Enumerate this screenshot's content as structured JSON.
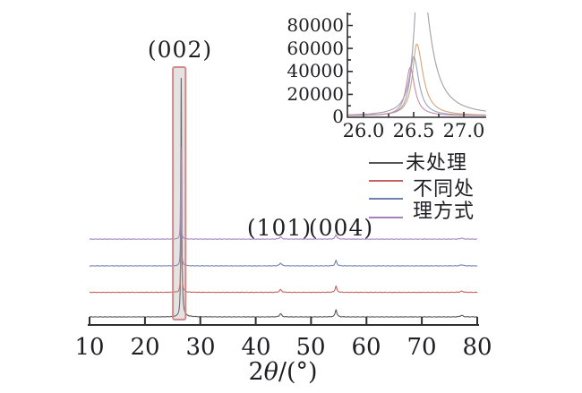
{
  "chart_data": {
    "type": "line",
    "title": "",
    "main": {
      "xlabel_parts": [
        "2",
        "θ",
        "/(°)"
      ],
      "x_tick_labels": [
        "10",
        "20",
        "30",
        "40",
        "50",
        "60",
        "70",
        "80"
      ],
      "x_range": [
        10,
        80
      ],
      "grid": false,
      "peak_annotations": [
        {
          "label": "(002)",
          "two_theta": 26.5
        },
        {
          "label": "(101)",
          "two_theta": 44.5
        },
        {
          "label": "(004)",
          "two_theta": 54.5
        }
      ],
      "highlight_band": {
        "x_min": 25.05,
        "x_max": 27.35,
        "fill": "rgba(168,160,160,0.30)",
        "stroke": "#d18a8b"
      },
      "series": [
        {
          "id": "s1-untreated",
          "color": "#55555c",
          "offset": 0,
          "peaks": [
            {
              "c": 26.55,
              "a": 110000,
              "wl": 0.07,
              "wr": 0.1
            },
            {
              "c": 44.5,
              "a": 1500,
              "w": 0.22
            },
            {
              "c": 54.5,
              "a": 3300,
              "w": 0.18
            },
            {
              "c": 77.2,
              "a": 700,
              "w": 0.3
            }
          ]
        },
        {
          "id": "s2-treated-a",
          "color": "#c4625e",
          "offset": 11300,
          "peaks": [
            {
              "c": 26.53,
              "a": 63000,
              "wl": 0.055,
              "wr": 0.075
            },
            {
              "c": 44.5,
              "a": 1300,
              "w": 0.22
            },
            {
              "c": 54.5,
              "a": 2900,
              "w": 0.18
            },
            {
              "c": 77.2,
              "a": 550,
              "w": 0.3
            }
          ]
        },
        {
          "id": "s3-treated-b",
          "color": "#6f80b2",
          "offset": 23500,
          "peaks": [
            {
              "c": 26.5,
              "a": 52000,
              "wl": 0.055,
              "wr": 0.065
            },
            {
              "c": 44.5,
              "a": 1300,
              "w": 0.22
            },
            {
              "c": 54.5,
              "a": 2500,
              "w": 0.18
            },
            {
              "c": 77.2,
              "a": 500,
              "w": 0.3
            }
          ]
        },
        {
          "id": "s4-treated-c",
          "color": "#a582bc",
          "offset": 35800,
          "peaks": [
            {
              "c": 26.47,
              "a": 42500,
              "wl": 0.055,
              "wr": 0.06
            },
            {
              "c": 44.5,
              "a": 1100,
              "w": 0.22
            },
            {
              "c": 54.5,
              "a": 2100,
              "w": 0.18
            },
            {
              "c": 77.2,
              "a": 450,
              "w": 0.3
            }
          ]
        }
      ]
    },
    "inset": {
      "x_tick_labels": [
        "26.0",
        "26.5",
        "27.0"
      ],
      "x_tick_values": [
        26.0,
        26.5,
        27.0
      ],
      "y_tick_labels": [
        "80000",
        "60000",
        "40000",
        "20000",
        "0"
      ],
      "y_tick_values": [
        80000,
        60000,
        40000,
        20000,
        0
      ],
      "x_range": [
        25.84,
        27.22
      ],
      "y_range": [
        0,
        91500
      ],
      "grid": false,
      "series": [
        {
          "id": "s1-untreated",
          "color": "#a0a0a6",
          "base": 1300,
          "peak": {
            "c": 26.555,
            "a": 140000,
            "wl": 0.055,
            "wr": 0.115
          }
        },
        {
          "id": "s2-treated-a",
          "color": "#d2a678",
          "base": 1300,
          "peak": {
            "c": 26.53,
            "a": 62500,
            "wl": 0.05,
            "wr": 0.075
          }
        },
        {
          "id": "s3-treated-b",
          "color": "#93a3c8",
          "base": 1300,
          "peak": {
            "c": 26.5,
            "a": 51500,
            "wl": 0.05,
            "wr": 0.062
          }
        },
        {
          "id": "s4-treated-c",
          "color": "#c78aa4",
          "base": 1300,
          "peak": {
            "c": 26.465,
            "a": 42000,
            "wl": 0.05,
            "wr": 0.055
          }
        }
      ]
    },
    "legend": {
      "position": "right-middle",
      "swatch_colors": [
        "#55555c",
        "#c4625e",
        "#6f80b2",
        "#a582bc"
      ],
      "labels": [
        "未处理",
        "不同处",
        "理方式"
      ]
    }
  }
}
